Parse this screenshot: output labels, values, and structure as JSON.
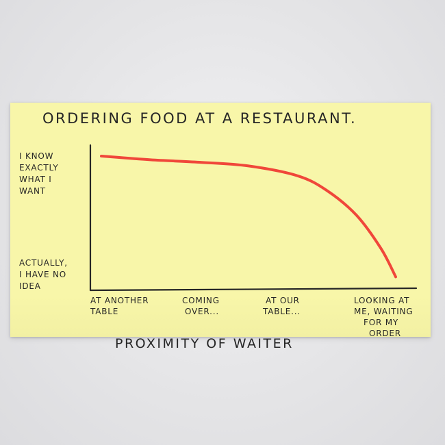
{
  "chart_data": {
    "type": "line",
    "title": "ORDERING FOOD AT A RESTAURANT.",
    "xlabel": "PROXIMITY OF WAITER",
    "ylabel": "",
    "categories": [
      [
        "AT ANOTHER",
        "TABLE"
      ],
      [
        "COMING",
        "OVER..."
      ],
      [
        "AT OUR",
        "TABLE..."
      ],
      [
        "LOOKING AT",
        "ME, WAITING",
        "FOR MY",
        "ORDER"
      ]
    ],
    "y_tick_labels": [
      {
        "value": 1,
        "lines": [
          "I KNOW",
          "EXACTLY",
          "WHAT I",
          "WANT"
        ]
      },
      {
        "value": 0,
        "lines": [
          "ACTUALLY,",
          "I HAVE NO",
          "IDEA"
        ]
      }
    ],
    "xlim": [
      0,
      3
    ],
    "ylim": [
      0,
      1
    ],
    "grid": false,
    "series": [
      {
        "x": [
          0,
          0.5,
          1,
          1.5,
          2,
          2.3,
          2.6,
          2.85,
          3
        ],
        "y": [
          1.0,
          0.97,
          0.95,
          0.92,
          0.84,
          0.72,
          0.52,
          0.25,
          0.02
        ],
        "color": "#f0473a"
      }
    ],
    "axis_color": "#262626"
  }
}
